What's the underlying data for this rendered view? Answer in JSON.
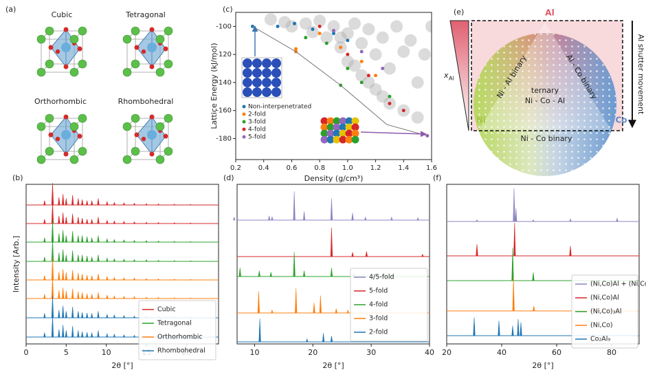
{
  "panel_a": {
    "label": "(a)",
    "structures": [
      "Cubic",
      "Tetragonal",
      "Orthorhombic",
      "Rhombohedral"
    ]
  },
  "panel_e": {
    "label": "(e)",
    "vertex_top": "Al",
    "vertex_left": "Ni",
    "vertex_right": "Co",
    "edge_left": "Ni - Al binary",
    "edge_right": "Al - Co binary",
    "center": [
      "ternary",
      "Ni - Co - Al"
    ],
    "edge_bottom": "Ni - Co binary",
    "gradient_label": "x",
    "gradient_label_sub": "Al",
    "arrow_label": "Al shutter movement"
  },
  "chart_data": [
    {
      "type": "spectra",
      "panel_label": "(b)",
      "ylabel": "Intensity [Arb.]",
      "xlabel": "2θ [°]",
      "xlim": [
        0,
        24
      ],
      "xticks": [
        0,
        5,
        10,
        15,
        20
      ],
      "legend": "lower right",
      "series": [
        {
          "name": "Cubic",
          "color": "#d62728",
          "x": [
            2.3,
            3.3,
            4.1,
            4.6,
            5.0,
            5.8,
            6.5,
            7.0,
            7.6,
            8.2,
            9.0,
            10.1,
            11.0,
            12.2,
            13.5,
            15.0,
            16.5,
            18.5,
            20.5
          ],
          "values": [
            0.2,
            1.0,
            0.35,
            0.5,
            0.3,
            0.45,
            0.3,
            0.25,
            0.2,
            0.2,
            0.3,
            0.15,
            0.12,
            0.1,
            0.08,
            0.06,
            0.05,
            0.04,
            0.03
          ]
        },
        {
          "name": "Tetragonal",
          "color": "#2ca02c",
          "x": [
            2.3,
            3.3,
            4.1,
            4.6,
            5.0,
            5.8,
            6.5,
            7.0,
            7.6,
            8.2,
            9.0,
            10.1,
            11.0,
            12.2,
            13.5,
            15.0,
            16.5,
            18.5,
            20.5
          ],
          "values": [
            0.2,
            1.0,
            0.4,
            0.55,
            0.3,
            0.5,
            0.3,
            0.3,
            0.25,
            0.2,
            0.3,
            0.15,
            0.12,
            0.1,
            0.08,
            0.07,
            0.05,
            0.04,
            0.03
          ]
        },
        {
          "name": "Orthorhombic",
          "color": "#ff7f0e",
          "x": [
            2.3,
            3.3,
            4.1,
            4.6,
            5.0,
            5.8,
            6.5,
            7.0,
            7.6,
            8.2,
            9.0,
            10.1,
            11.0,
            12.2,
            13.5,
            15.0,
            16.5,
            18.5,
            20.5
          ],
          "values": [
            0.2,
            1.0,
            0.38,
            0.5,
            0.35,
            0.45,
            0.32,
            0.28,
            0.22,
            0.2,
            0.28,
            0.16,
            0.12,
            0.1,
            0.09,
            0.06,
            0.05,
            0.04,
            0.03
          ]
        },
        {
          "name": "Rhombohedral",
          "color": "#1f77b4",
          "x": [
            2.3,
            3.3,
            4.1,
            4.6,
            5.0,
            5.8,
            6.5,
            7.0,
            7.6,
            8.2,
            9.0,
            10.1,
            11.0,
            12.2,
            13.5,
            15.0,
            16.5,
            18.5,
            20.5
          ],
          "values": [
            0.2,
            1.0,
            0.35,
            0.55,
            0.3,
            0.5,
            0.3,
            0.25,
            0.22,
            0.2,
            0.3,
            0.15,
            0.13,
            0.1,
            0.08,
            0.06,
            0.05,
            0.04,
            0.03
          ]
        }
      ]
    },
    {
      "type": "scatter",
      "panel_label": "(c)",
      "xlabel": "Density (g/cm³)",
      "ylabel": "Lattice Energy (kJ/mol)",
      "xlim": [
        0.2,
        1.6
      ],
      "ylim": [
        -195,
        -90
      ],
      "xticks": [
        0.2,
        0.4,
        0.6,
        0.8,
        {
          "value": 1,
          "label": "1.0"
        },
        1.2,
        1.4,
        1.6
      ],
      "yticks": [
        -100,
        -120,
        -140,
        -160,
        -180
      ],
      "legend": "lower left",
      "background": {
        "color": "#b0b0b0",
        "x": [
          0.45,
          0.55,
          0.6,
          0.7,
          0.75,
          0.8,
          0.85,
          0.9,
          0.95,
          1.0,
          1.0,
          1.05,
          1.1,
          1.1,
          1.15,
          1.2,
          1.2,
          1.25,
          1.3,
          1.3,
          1.35,
          1.4,
          1.4,
          1.45,
          1.5,
          1.5,
          1.55,
          1.6,
          0.95,
          1.05,
          1.15,
          1.25
        ],
        "y": [
          -95,
          -97,
          -100,
          -98,
          -104,
          -96,
          -108,
          -100,
          -115,
          -105,
          -125,
          -98,
          -112,
          -135,
          -102,
          -120,
          -145,
          -108,
          -130,
          -155,
          -100,
          -118,
          -160,
          -110,
          -140,
          -165,
          -120,
          -100,
          -108,
          -128,
          -140,
          -150
        ]
      },
      "frontier": {
        "color": "#777777",
        "x": [
          0.32,
          0.63,
          0.95,
          1.28,
          1.57
        ],
        "y": [
          -100,
          -118,
          -142,
          -170,
          -178
        ]
      },
      "series": [
        {
          "name": "Non-interpenetrated",
          "color": "#1f77b4",
          "x": [
            0.32,
            0.5,
            0.62,
            0.75,
            0.9,
            1.0
          ],
          "values": [
            -100,
            -100,
            -98,
            -102,
            -105,
            -110
          ]
        },
        {
          "name": "2-fold",
          "color": "#ff7f0e",
          "x": [
            0.63,
            0.63,
            0.8,
            0.95,
            1.1,
            1.2
          ],
          "values": [
            -116,
            -118,
            -105,
            -115,
            -125,
            -135
          ]
        },
        {
          "name": "3-fold",
          "color": "#2ca02c",
          "x": [
            0.7,
            0.85,
            0.95,
            1.0,
            1.1,
            1.3
          ],
          "values": [
            -108,
            -112,
            -142,
            -130,
            -140,
            -150
          ]
        },
        {
          "name": "4-fold",
          "color": "#d62728",
          "x": [
            0.8,
            1.0,
            1.15,
            1.3,
            1.4
          ],
          "values": [
            -100,
            -120,
            -135,
            -155,
            -160
          ]
        },
        {
          "name": "5-fold",
          "color": "#9467bd",
          "x": [
            0.9,
            1.1,
            1.25,
            1.57
          ],
          "values": [
            -103,
            -118,
            -130,
            -178
          ]
        }
      ]
    },
    {
      "type": "spectra",
      "panel_label": "(d)",
      "xlabel": "2θ [°]",
      "xlim": [
        7,
        40
      ],
      "xticks": [
        10,
        20,
        30,
        40
      ],
      "legend": "lower right",
      "series": [
        {
          "name": "4/5-fold",
          "color": "#8c84c4",
          "x": [
            6.5,
            12.5,
            13.0,
            16.8,
            18.5,
            23.2,
            26.8,
            29.0,
            33.5,
            38.0
          ],
          "values": [
            0.1,
            0.15,
            0.12,
            1.0,
            0.3,
            0.75,
            0.25,
            0.1,
            0.1,
            0.08
          ]
        },
        {
          "name": "5-fold",
          "color": "#d62728",
          "x": [
            23.2,
            26.8,
            29.2,
            38.8
          ],
          "values": [
            1.0,
            0.15,
            0.18,
            0.08
          ]
        },
        {
          "name": "4-fold",
          "color": "#2ca02c",
          "x": [
            7.5,
            10.8,
            12.8,
            16.8,
            18.5,
            23.2,
            27.0
          ],
          "values": [
            0.3,
            0.2,
            0.15,
            0.85,
            0.2,
            0.3,
            0.12
          ]
        },
        {
          "name": "3-fold",
          "color": "#ff7f0e",
          "x": [
            10.7,
            13.0,
            17.1,
            20.2,
            21.3,
            24.0,
            26.0
          ],
          "values": [
            0.75,
            0.1,
            0.85,
            0.35,
            0.6,
            0.15,
            0.1
          ]
        },
        {
          "name": "2-fold",
          "color": "#1f77b4",
          "x": [
            10.9,
            19.0,
            21.8,
            23.2
          ],
          "values": [
            0.8,
            0.1,
            0.3,
            0.2
          ]
        }
      ]
    },
    {
      "type": "spectra",
      "panel_label": "(f)",
      "xlabel": "2θ [°]",
      "xlim": [
        20,
        90
      ],
      "xticks": [
        20,
        40,
        60,
        80
      ],
      "legend": "lower right",
      "series": [
        {
          "name": "(Ni,Co)Al + (Ni,Co)₃Al",
          "color": "#8c84c4",
          "x": [
            31,
            44.5,
            45.2,
            51.5,
            65,
            82
          ],
          "values": [
            0.05,
            1.0,
            0.4,
            0.05,
            0.08,
            0.1
          ]
        },
        {
          "name": "(Ni,Co)Al",
          "color": "#d62728",
          "x": [
            31,
            44.7,
            65
          ],
          "values": [
            0.35,
            1.0,
            0.3
          ]
        },
        {
          "name": "(Ni,Co)₃Al",
          "color": "#2ca02c",
          "x": [
            44,
            51.5
          ],
          "values": [
            1.0,
            0.25
          ]
        },
        {
          "name": "(Ni,Co)",
          "color": "#ff7f0e",
          "x": [
            44.3,
            51.7
          ],
          "values": [
            1.0,
            0.15
          ]
        },
        {
          "name": "Co₂Al₉",
          "color": "#1f77b4",
          "x": [
            30,
            39,
            44,
            46,
            47
          ],
          "values": [
            0.55,
            0.45,
            0.3,
            0.5,
            0.4
          ]
        }
      ]
    }
  ]
}
